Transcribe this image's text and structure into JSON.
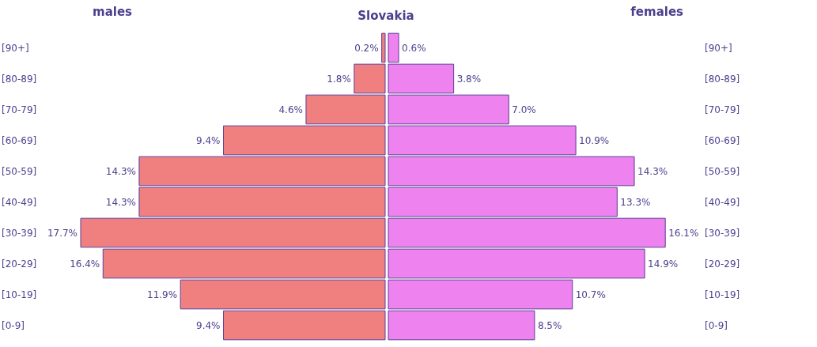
{
  "chart_data": [
    {
      "type": "bar",
      "orientation": "horizontal",
      "title": "Slovakia",
      "categories": [
        "[90+]",
        "[80-89]",
        "[70-79]",
        "[60-69]",
        "[50-59]",
        "[40-49]",
        "[30-39]",
        "[20-29]",
        "[10-19]",
        "[0-9]"
      ],
      "series": [
        {
          "name": "males",
          "color": "#f08080",
          "values": [
            0.2,
            1.8,
            4.6,
            9.4,
            14.3,
            14.3,
            17.7,
            16.4,
            11.9,
            9.4
          ],
          "value_labels": [
            "0.2%",
            "1.8%",
            "4.6%",
            "9.4%",
            "14.3%",
            "14.3%",
            "17.7%",
            "16.4%",
            "11.9%",
            "9.4%"
          ]
        }
      ]
    },
    {
      "type": "bar",
      "orientation": "horizontal",
      "categories": [
        "[90+]",
        "[80-89]",
        "[70-79]",
        "[60-69]",
        "[50-59]",
        "[40-49]",
        "[30-39]",
        "[20-29]",
        "[10-19]",
        "[0-9]"
      ],
      "series": [
        {
          "name": "females",
          "color": "#ee82ee",
          "values": [
            0.6,
            3.8,
            7.0,
            10.9,
            14.3,
            13.3,
            16.1,
            14.9,
            10.7,
            8.5
          ],
          "value_labels": [
            "0.6%",
            "3.8%",
            "7.0%",
            "10.9%",
            "14.3%",
            "13.3%",
            "16.1%",
            "14.9%",
            "10.7%",
            "8.5%"
          ]
        }
      ]
    }
  ]
}
